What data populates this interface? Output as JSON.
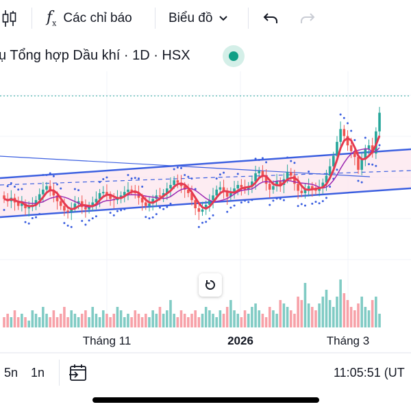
{
  "toolbar": {
    "indicators_icon": "fx-icon",
    "indicators_label": "Các chỉ báo",
    "chart_type_label": "Biểu đồ",
    "undo_icon": "undo-icon",
    "redo_icon": "redo-icon"
  },
  "header": {
    "symbol_title": "ụ Tổng hợp Dầu khí · 1D · HSX",
    "market_status_color": "#0f9f86"
  },
  "colors": {
    "up": "#26a69a",
    "down": "#ef5350",
    "channel": "#3b5fe0",
    "ma_fast": "#e53950",
    "ma_slow": "#9c27b0",
    "last_price_line": "#26a69a",
    "channel_fill": "#fce4ec"
  },
  "chart_data": {
    "type": "candlestick",
    "x_tick_labels": [
      "Tháng 11",
      "2026",
      "Tháng 3"
    ],
    "grid": true,
    "closes": [
      -0.2,
      -0.4,
      -0.1,
      -0.5,
      -0.8,
      -0.6,
      -1.0,
      -0.9,
      -0.7,
      -0.3,
      0.2,
      0.6,
      0.9,
      0.5,
      0.1,
      -0.4,
      -0.8,
      -1.2,
      -1.3,
      -1.0,
      -0.6,
      -0.4,
      -0.9,
      -1.1,
      -0.8,
      -0.5,
      -0.2,
      0.3,
      0.4,
      0.1,
      -0.2,
      -0.3,
      -0.1,
      0.1,
      0.4,
      0.6,
      0.5,
      0.3,
      -0.1,
      -0.5,
      -0.8,
      -0.6,
      -0.2,
      0.1,
      0.0,
      0.3,
      0.7,
      1.0,
      1.4,
      1.2,
      0.9,
      0.6,
      0.3,
      -0.3,
      -1.0,
      -1.3,
      -1.1,
      -0.7,
      -0.3,
      0.1,
      0.6,
      0.8,
      0.4,
      0.0,
      0.3,
      0.7,
      1.0,
      0.8,
      0.6,
      0.9,
      1.3,
      2.0,
      2.2,
      1.7,
      1.1,
      0.6,
      0.9,
      1.3,
      1.0,
      1.5,
      2.1,
      1.8,
      1.1,
      0.5,
      0.3,
      0.6,
      0.9,
      0.7,
      0.5,
      0.8,
      1.2,
      1.8,
      2.6,
      3.5,
      4.7,
      5.8,
      5.2,
      4.4,
      3.9,
      3.4,
      2.3,
      3.2,
      4.1,
      4.4,
      3.7,
      5.6,
      7.2
    ],
    "volumes": [
      3,
      4,
      3,
      5,
      3,
      4,
      3,
      2,
      5,
      4,
      3,
      6,
      4,
      3,
      5,
      3,
      4,
      6,
      3,
      5,
      4,
      3,
      4,
      5,
      3,
      6,
      4,
      3,
      5,
      4,
      3,
      4,
      6,
      5,
      3,
      4,
      3,
      5,
      4,
      3,
      4,
      3,
      5,
      4,
      6,
      4,
      5,
      8,
      4,
      3,
      5,
      4,
      3,
      4,
      5,
      3,
      4,
      6,
      5,
      4,
      3,
      5,
      4,
      6,
      8,
      5,
      4,
      3,
      5,
      4,
      6,
      7,
      5,
      4,
      3,
      6,
      5,
      4,
      8,
      7,
      6,
      5,
      4,
      9,
      8,
      13,
      7,
      6,
      5,
      7,
      9,
      11,
      8,
      6,
      9,
      14,
      10,
      8,
      6,
      5,
      7,
      9,
      6,
      5,
      8,
      9,
      4
    ]
  },
  "bottom_bar": {
    "interval_5n": "5n",
    "interval_1n": "1n",
    "goto_date_icon": "calendar-arrow-icon",
    "clock": "11:05:51 (UT"
  }
}
